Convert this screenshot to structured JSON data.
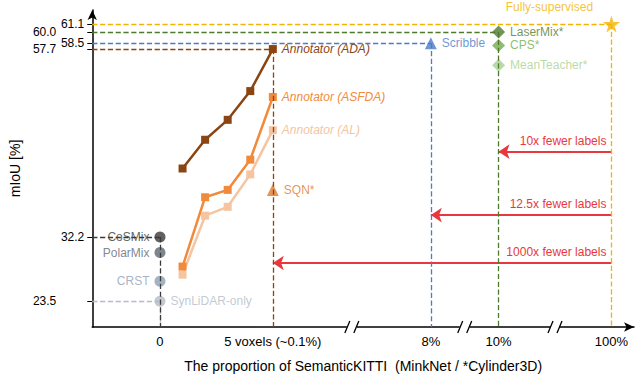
{
  "chart_data": {
    "type": "scatter",
    "x_label": "The proportion of SemanticKITTI  (MinkNet / *Cylinder3D)",
    "y_label": "mIoU [%]",
    "categories": [
      null,
      null,
      null,
      "0",
      null,
      null,
      null,
      null,
      "5 voxels (~0.1%)",
      null,
      null,
      null,
      null,
      null,
      null,
      "8%",
      null,
      null,
      "10%",
      null,
      null,
      null,
      null,
      "100%",
      null
    ],
    "ylim": [
      20,
      63
    ],
    "yticks": [
      23.5,
      32.2,
      57.7,
      58.5,
      {
        "value": 60,
        "label": "60.0"
      },
      61.1
    ],
    "grid": false,
    "series": [
      {
        "name": "SynLiDAR-only",
        "color": "#b4bcc8",
        "marker": "circle",
        "values": [
          null,
          null,
          null,
          23.5,
          null,
          null,
          null,
          null,
          null,
          null,
          null,
          null,
          null,
          null,
          null,
          null,
          null,
          null,
          null,
          null,
          null,
          null,
          null,
          null,
          null
        ]
      },
      {
        "name": "CRST",
        "color": "#8e9fb5",
        "marker": "circle",
        "values": [
          null,
          null,
          null,
          26.2,
          null,
          null,
          null,
          null,
          null,
          null,
          null,
          null,
          null,
          null,
          null,
          null,
          null,
          null,
          null,
          null,
          null,
          null,
          null,
          null,
          null
        ]
      },
      {
        "name": "PolarMix",
        "color": "#5f6672",
        "marker": "circle",
        "values": [
          null,
          null,
          null,
          30.1,
          null,
          null,
          null,
          null,
          null,
          null,
          null,
          null,
          null,
          null,
          null,
          null,
          null,
          null,
          null,
          null,
          null,
          null,
          null,
          null,
          null
        ]
      },
      {
        "name": "CoSMix",
        "color": "#3a3a3a",
        "marker": "circle",
        "values": [
          null,
          null,
          null,
          32.2,
          null,
          null,
          null,
          null,
          null,
          null,
          null,
          null,
          null,
          null,
          null,
          null,
          null,
          null,
          null,
          null,
          null,
          null,
          null,
          null,
          null
        ]
      },
      {
        "name": "Annotator (AL)",
        "type": "line",
        "color": "#f5c4a0",
        "marker": "square",
        "values": [
          null,
          null,
          null,
          null,
          27.1,
          35.1,
          36.3,
          40.7,
          46.7,
          null,
          null,
          null,
          null,
          null,
          null,
          null,
          null,
          null,
          null,
          null,
          null,
          null,
          null,
          null,
          null
        ]
      },
      {
        "name": "Annotator (ASFDA)",
        "type": "line",
        "color": "#f28a3c",
        "marker": "square",
        "values": [
          null,
          null,
          null,
          null,
          28.2,
          37.6,
          38.6,
          42.7,
          51.2,
          null,
          null,
          null,
          null,
          null,
          null,
          null,
          null,
          null,
          null,
          null,
          null,
          null,
          null,
          null,
          null
        ]
      },
      {
        "name": "Annotator (ADA)",
        "type": "line",
        "color": "#8b4513",
        "marker": "square",
        "values": [
          null,
          null,
          null,
          null,
          41.5,
          45.4,
          48.1,
          52.0,
          57.7,
          null,
          null,
          null,
          null,
          null,
          null,
          null,
          null,
          null,
          null,
          null,
          null,
          null,
          null,
          null,
          null
        ]
      },
      {
        "name": "SQN*",
        "color": "#e07a2c",
        "marker": "triangle",
        "values": [
          null,
          null,
          null,
          null,
          null,
          null,
          null,
          null,
          38.6,
          null,
          null,
          null,
          null,
          null,
          null,
          null,
          null,
          null,
          null,
          null,
          null,
          null,
          null,
          null,
          null
        ]
      },
      {
        "name": "Scribble",
        "color": "#4a7cc9",
        "marker": "triangle",
        "values": [
          null,
          null,
          null,
          null,
          null,
          null,
          null,
          null,
          null,
          null,
          null,
          null,
          null,
          null,
          null,
          58.5,
          null,
          null,
          null,
          null,
          null,
          null,
          null,
          null,
          null
        ]
      },
      {
        "name": "LaserMix*",
        "color": "#4e7a2e",
        "marker": "diamond",
        "values": [
          null,
          null,
          null,
          null,
          null,
          null,
          null,
          null,
          null,
          null,
          null,
          null,
          null,
          null,
          null,
          null,
          null,
          null,
          60.0,
          null,
          null,
          null,
          null,
          null,
          null
        ]
      },
      {
        "name": "CPS*",
        "color": "#72ad4c",
        "marker": "diamond",
        "values": [
          null,
          null,
          null,
          null,
          null,
          null,
          null,
          null,
          null,
          null,
          null,
          null,
          null,
          null,
          null,
          null,
          null,
          null,
          58.2,
          null,
          null,
          null,
          null,
          null,
          null
        ]
      },
      {
        "name": "MeanTeacher*",
        "color": "#a9d18e",
        "marker": "diamond",
        "values": [
          null,
          null,
          null,
          null,
          null,
          null,
          null,
          null,
          null,
          null,
          null,
          null,
          null,
          null,
          null,
          null,
          null,
          null,
          55.5,
          null,
          null,
          null,
          null,
          null,
          null
        ]
      },
      {
        "name": "Fully-supervised",
        "color": "#f2b400",
        "marker": "star",
        "values": [
          null,
          null,
          null,
          null,
          null,
          null,
          null,
          null,
          null,
          null,
          null,
          null,
          null,
          null,
          null,
          null,
          null,
          null,
          null,
          null,
          null,
          null,
          null,
          61.1,
          null
        ]
      }
    ],
    "annotations": [
      {
        "text": "10x fewer labels",
        "from": "10%",
        "to": "100%",
        "color": "#e8383d"
      },
      {
        "text": "12.5x fewer labels",
        "from": "8%",
        "to": "100%",
        "color": "#e8383d"
      },
      {
        "text": "1000x fewer labels",
        "from": "5 voxels (~0.1%)",
        "to": "100%",
        "color": "#e8383d"
      }
    ]
  }
}
